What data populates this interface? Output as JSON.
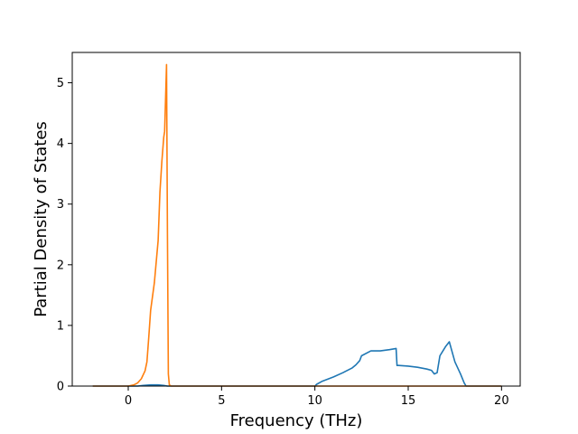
{
  "chart_data": {
    "type": "line",
    "xlabel": "Frequency (THz)",
    "ylabel": "Partial Density of States",
    "xlim": [
      -3,
      21
    ],
    "ylim": [
      0,
      5.5
    ],
    "x_ticks": [
      0,
      5,
      10,
      15,
      20
    ],
    "y_ticks": [
      0,
      1,
      2,
      3,
      4,
      5
    ],
    "x_tick_labels": [
      "0",
      "5",
      "10",
      "15",
      "20"
    ],
    "y_tick_labels": [
      "0",
      "1",
      "2",
      "3",
      "4",
      "5"
    ],
    "grid": false,
    "legend": "none",
    "series": [
      {
        "color": "#1f77b4",
        "x": [
          -1.9,
          0.5,
          0.8,
          1.2,
          1.6,
          1.9,
          2.1,
          2.3,
          10.0,
          10.1,
          10.4,
          11.0,
          11.5,
          12.0,
          12.2,
          12.4,
          12.5,
          13.0,
          13.5,
          14.0,
          14.35,
          14.4,
          14.5,
          15.0,
          15.5,
          16.0,
          16.25,
          16.4,
          16.55,
          16.7,
          16.9,
          17.0,
          17.2,
          17.5,
          17.8,
          18.0,
          18.1,
          20.0
        ],
        "y": [
          0.0,
          0.0,
          0.01,
          0.02,
          0.02,
          0.01,
          0.0,
          0.0,
          0.0,
          0.03,
          0.08,
          0.15,
          0.22,
          0.3,
          0.35,
          0.42,
          0.5,
          0.58,
          0.58,
          0.6,
          0.62,
          0.34,
          0.34,
          0.33,
          0.31,
          0.28,
          0.26,
          0.2,
          0.22,
          0.5,
          0.6,
          0.65,
          0.73,
          0.4,
          0.2,
          0.05,
          0.0,
          0.0
        ]
      },
      {
        "color": "#ff7f0e",
        "x": [
          -1.9,
          0.0,
          0.3,
          0.5,
          0.7,
          0.9,
          1.0,
          1.1,
          1.2,
          1.4,
          1.6,
          1.7,
          1.8,
          1.9,
          1.95,
          2.05,
          2.1,
          2.15,
          2.2,
          2.3,
          20.0
        ],
        "y": [
          0.0,
          0.0,
          0.02,
          0.05,
          0.12,
          0.25,
          0.4,
          0.8,
          1.25,
          1.7,
          2.4,
          3.2,
          3.7,
          4.1,
          4.2,
          5.3,
          2.5,
          0.2,
          0.02,
          0.0,
          0.0
        ]
      }
    ]
  }
}
